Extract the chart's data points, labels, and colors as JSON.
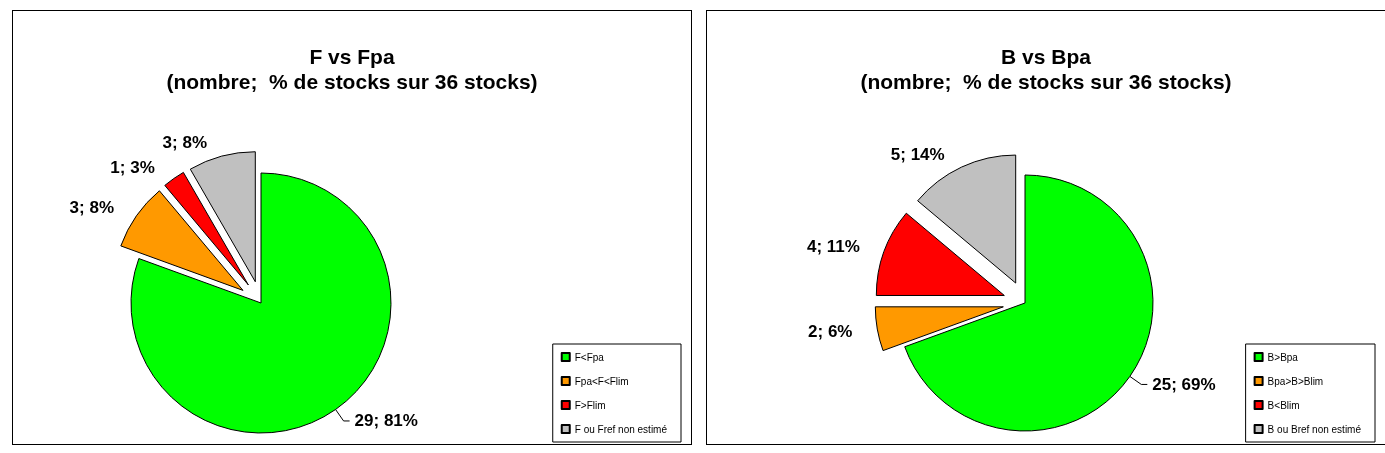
{
  "chart_data": [
    {
      "type": "pie",
      "title": "F vs Fpa",
      "subtitle": "(nombre;  % de stocks sur 36 stocks)",
      "categories": [
        "F<Fpa",
        "Fpa<F<Flim",
        "F>Flim",
        "F ou Fref non estimé"
      ],
      "values": [
        29,
        3,
        1,
        3
      ],
      "colors": [
        "#00ff00",
        "#ff9900",
        "#ff0000",
        "#c0c0c0"
      ],
      "value_labels": [
        "29; 81%",
        "3; 8%",
        "1; 3%",
        "3; 8%"
      ],
      "legend": "bottom right"
    },
    {
      "type": "pie",
      "title": "B vs Bpa",
      "subtitle": "(nombre;  % de stocks sur 36 stocks)",
      "categories": [
        "B>Bpa",
        "Bpa>B>Blim",
        "B<Blim",
        "B ou Bref non estimé"
      ],
      "values": [
        25,
        2,
        4,
        5
      ],
      "colors": [
        "#00ff00",
        "#ff9900",
        "#ff0000",
        "#c0c0c0"
      ],
      "value_labels": [
        "25; 69%",
        "2; 6%",
        "4; 11%",
        "5; 14%"
      ],
      "legend": "bottom right"
    }
  ]
}
